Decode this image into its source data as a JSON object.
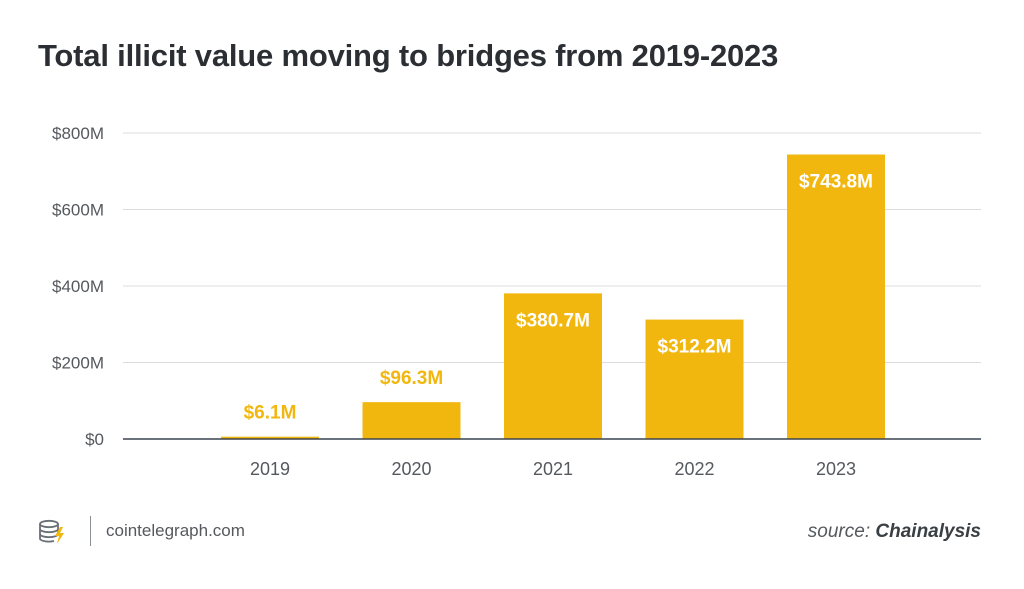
{
  "title": "Total illicit value moving to bridges from 2019-2023",
  "chart_data": {
    "type": "bar",
    "title": "Total illicit value moving to bridges from 2019-2023",
    "categories": [
      "2019",
      "2020",
      "2021",
      "2022",
      "2023"
    ],
    "values": [
      6.1,
      96.3,
      380.7,
      312.2,
      743.8
    ],
    "data_labels": [
      "$6.1M",
      "$96.3M",
      "$380.7M",
      "$312.2M",
      "$743.8M"
    ],
    "ylim": [
      0,
      800
    ],
    "yticks": [
      0,
      200,
      400,
      600,
      800
    ],
    "ytick_labels": [
      "$0",
      "$200M",
      "$400M",
      "$600M",
      "$800M"
    ],
    "xlabel": "",
    "ylabel": "",
    "grid": true,
    "colors": {
      "bar": "#f2b70e",
      "grid": "#dcdcdc",
      "axis": "#3c4350",
      "label_inside": "#ffffff",
      "label_outside": "#f2b70e"
    }
  },
  "footer": {
    "site": "cointelegraph.com",
    "source_prefix": "source:",
    "source_name": "Chainalysis",
    "logo_icon": "cointelegraph-logo-icon"
  }
}
